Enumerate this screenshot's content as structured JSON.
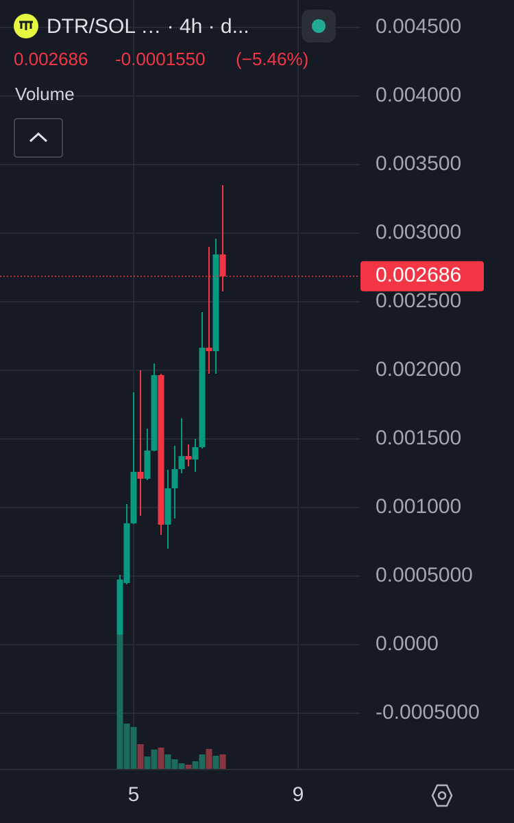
{
  "header": {
    "title": "DTR/SOL … · 4h · d...",
    "price": "0.002686",
    "change": "-0.0001550",
    "change_pct": "(−5.46%)",
    "pane_label": "Volume"
  },
  "chart_data": {
    "type": "candlestick",
    "x": [
      4.6667,
      4.8333,
      5,
      5.1667,
      5.3333,
      5.5,
      5.6667,
      5.8333,
      6,
      6.1667,
      6.3333,
      6.5,
      6.6667,
      6.8333,
      7,
      7.1667
    ],
    "open": [
      7.5e-05,
      0.00045,
      0.000885,
      0.00126,
      0.00121,
      0.001415,
      0.001965,
      0.000875,
      0.00114,
      0.00128,
      0.001375,
      0.00135,
      0.00144,
      0.002165,
      0.00214,
      0.002845
    ],
    "high": [
      0.00051,
      0.001025,
      0.00184,
      0.002,
      0.001575,
      0.00205,
      0.001975,
      0.001275,
      0.00145,
      0.00165,
      0.00146,
      0.0015,
      0.002425,
      0.0029,
      0.00296,
      0.00335
    ],
    "low": [
      7e-05,
      0.00044,
      0.00088,
      0.00094,
      0.0012,
      0.00141,
      0.0008,
      0.0007,
      0.00092,
      0.00125,
      0.0013,
      0.00126,
      0.00143,
      0.001975,
      0.001975,
      0.002575
    ],
    "close": [
      0.000475,
      0.000885,
      0.00126,
      0.00121,
      0.001415,
      0.001965,
      0.000875,
      0.00114,
      0.00128,
      0.001375,
      0.00135,
      0.00144,
      0.002165,
      0.00214,
      0.002845,
      0.002686
    ],
    "volume": [
      197,
      67,
      62,
      37,
      19,
      29,
      32,
      22,
      15,
      9,
      7,
      12,
      22,
      30,
      20,
      22
    ],
    "up_color": "#089981",
    "down_color": "#f23645",
    "volume_up_color": "#1d6b5c",
    "volume_down_color": "#8a3640",
    "last_price": 0.002686,
    "xlim": [
      1.75,
      10.5
    ],
    "xticks": [
      5,
      9
    ],
    "ylim": [
      -0.00091,
      0.0047
    ],
    "yticks": [
      {
        "value": 0.0045,
        "label": "0.004500"
      },
      {
        "value": 0.004,
        "label": "0.004000"
      },
      {
        "value": 0.0035,
        "label": "0.003500"
      },
      {
        "value": 0.003,
        "label": "0.003000"
      },
      {
        "value": 0.0025,
        "label": "0.002500"
      },
      {
        "value": 0.002,
        "label": "0.002000"
      },
      {
        "value": 0.0015,
        "label": "0.001500"
      },
      {
        "value": 0.001,
        "label": "0.001000"
      },
      {
        "value": 0.0005,
        "label": "0.0005000"
      },
      {
        "value": 0,
        "label": "0.0000"
      },
      {
        "value": -0.0005,
        "label": "-0.0005000"
      }
    ],
    "grid": true
  }
}
